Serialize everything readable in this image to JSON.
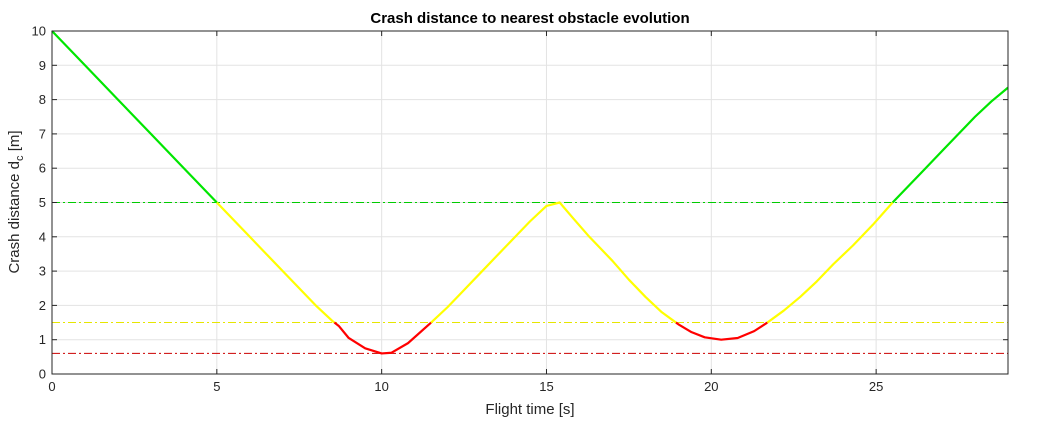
{
  "chart_data": {
    "type": "line",
    "title": "Crash distance to nearest obstacle evolution",
    "xlabel": "Flight time [s]",
    "ylabel_main": "Crash distance d",
    "ylabel_subscript": "c",
    "ylabel_unit": " [m]",
    "xlim": [
      0,
      29
    ],
    "ylim": [
      0,
      10
    ],
    "x_ticks": [
      0,
      5,
      10,
      15,
      20,
      25
    ],
    "y_ticks": [
      0,
      1,
      2,
      3,
      4,
      5,
      6,
      7,
      8,
      9,
      10
    ],
    "x_tick_labels": [
      "0",
      "5",
      "10",
      "15",
      "20",
      "25"
    ],
    "y_tick_labels": [
      "0",
      "1",
      "2",
      "3",
      "4",
      "5",
      "6",
      "7",
      "8",
      "9",
      "10"
    ],
    "grid": true,
    "thresholds": [
      {
        "y": 5.0,
        "color": "#00cc00"
      },
      {
        "y": 1.5,
        "color": "#e6e600"
      },
      {
        "y": 0.6,
        "color": "#cc0000"
      }
    ],
    "zone_colors": {
      "safe": "#00e600",
      "warning": "#ffff00",
      "danger": "#ff0000"
    },
    "series": [
      {
        "x": [
          0,
          1,
          2,
          3,
          4,
          5,
          5.5,
          6,
          6.5,
          7,
          7.5,
          8,
          8.5,
          8.7,
          9,
          9.5,
          10,
          10.3,
          10.8,
          11.5,
          12,
          12.5,
          13,
          13.5,
          14,
          14.5,
          15,
          15.4,
          15.8,
          16.3,
          17,
          17.5,
          18,
          18.5,
          19,
          19.4,
          19.8,
          20.3,
          20.8,
          21.3,
          21.7,
          22.2,
          22.7,
          23.2,
          23.7,
          24.3,
          24.9,
          25.5,
          26,
          26.5,
          27,
          27.5,
          28,
          28.5,
          29
        ],
        "y": [
          10,
          9,
          8,
          7,
          6,
          5,
          4.5,
          4.0,
          3.5,
          3.0,
          2.5,
          2.0,
          1.55,
          1.4,
          1.05,
          0.75,
          0.6,
          0.62,
          0.9,
          1.5,
          1.95,
          2.45,
          2.95,
          3.45,
          3.95,
          4.45,
          4.9,
          5.0,
          4.55,
          4.0,
          3.3,
          2.75,
          2.25,
          1.8,
          1.45,
          1.22,
          1.07,
          1.0,
          1.05,
          1.25,
          1.5,
          1.85,
          2.25,
          2.7,
          3.2,
          3.75,
          4.35,
          5.0,
          5.5,
          6.0,
          6.5,
          7.0,
          7.5,
          7.95,
          8.35
        ]
      }
    ]
  }
}
